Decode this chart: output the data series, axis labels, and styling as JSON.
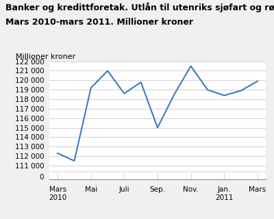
{
  "title_line1": "Banker og kredittforetak. Utlån til utenriks sjøfart og rørtransport.",
  "title_line2": "Mars 2010-mars 2011. Millioner kroner",
  "ylabel": "Millioner kroner",
  "x_labels": [
    "Mars\n2010",
    "Mai",
    "Juli",
    "Sep.",
    "Nov.",
    "Jan.\n2011",
    "Mars"
  ],
  "x_positions": [
    0,
    2,
    4,
    6,
    8,
    10,
    12
  ],
  "data_x": [
    0,
    1,
    2,
    3,
    4,
    5,
    6,
    7,
    8,
    9,
    10,
    11,
    12
  ],
  "data_y": [
    112300,
    111500,
    119200,
    121000,
    118600,
    119800,
    115000,
    118500,
    121500,
    119000,
    118400,
    118900,
    119900
  ],
  "line_color": "#3a7abf",
  "background_color": "#f0f0f0",
  "plot_bg_color": "#ffffff",
  "grid_color": "#c8c8c8",
  "title_fontsize": 9.0,
  "label_fontsize": 8.0,
  "tick_fontsize": 7.5
}
